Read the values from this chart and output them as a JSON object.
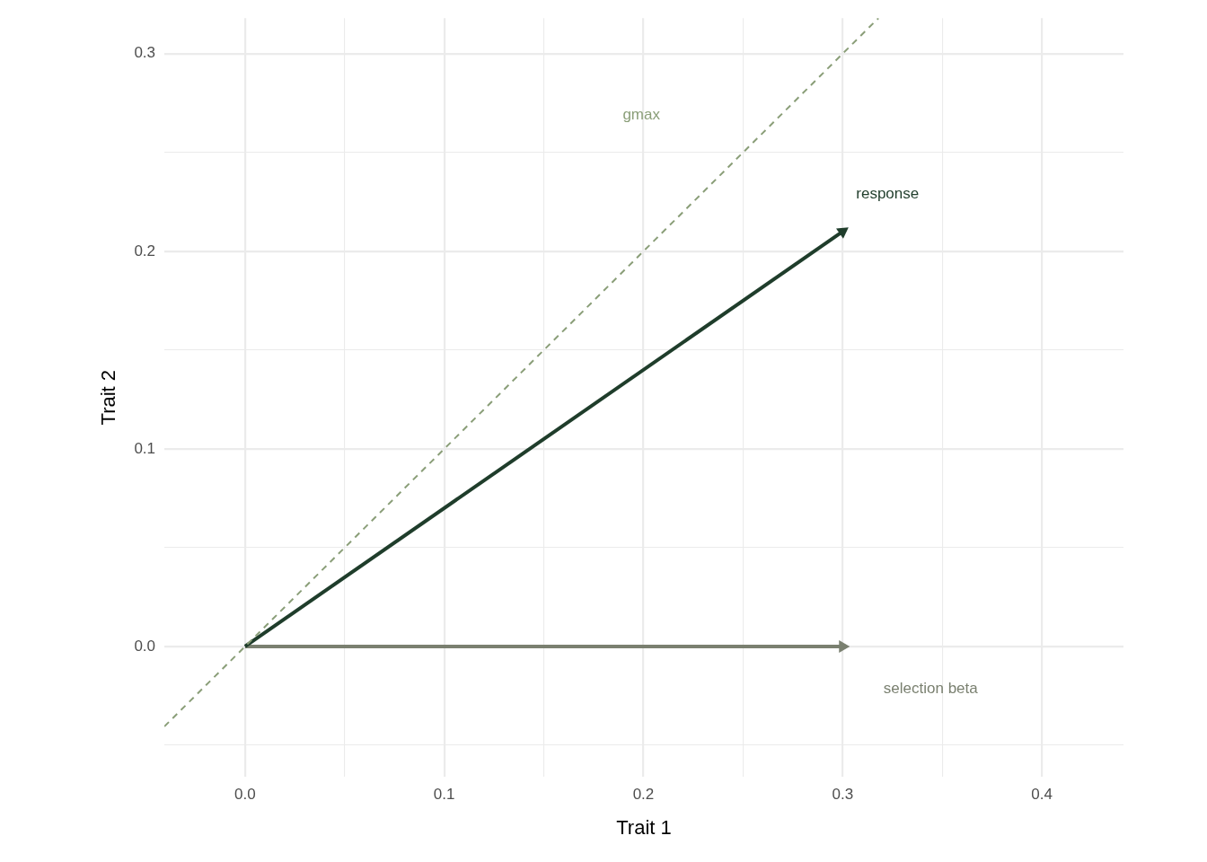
{
  "chart_data": {
    "type": "line",
    "xlabel": "Trait 1",
    "ylabel": "Trait 2",
    "xlim": [
      -0.0405,
      0.441
    ],
    "ylim": [
      -0.066,
      0.318
    ],
    "xticks": [
      {
        "value": 0,
        "label": "0.0"
      },
      {
        "value": 0.05,
        "label": null
      },
      {
        "value": 0.1,
        "label": "0.1"
      },
      {
        "value": 0.15,
        "label": null
      },
      {
        "value": 0.2,
        "label": "0.2"
      },
      {
        "value": 0.25,
        "label": null
      },
      {
        "value": 0.3,
        "label": "0.3"
      },
      {
        "value": 0.35,
        "label": null
      },
      {
        "value": 0.4,
        "label": "0.4"
      }
    ],
    "yticks": [
      {
        "value": -0.05,
        "label": null
      },
      {
        "value": 0,
        "label": "0.0"
      },
      {
        "value": 0.05,
        "label": null
      },
      {
        "value": 0.1,
        "label": "0.1"
      },
      {
        "value": 0.15,
        "label": null
      },
      {
        "value": 0.2,
        "label": "0.2"
      },
      {
        "value": 0.25,
        "label": null
      },
      {
        "value": 0.3,
        "label": "0.3"
      }
    ],
    "grid": true,
    "legend": false,
    "series": [
      {
        "name": "gmax",
        "color": "#8a9e78",
        "x": [
          -0.0405,
          0.318
        ],
        "values": [
          -0.0405,
          0.318
        ],
        "line_style": "dashed"
      },
      {
        "name": "response",
        "color": "#1f3d2b",
        "x": [
          0,
          0.3
        ],
        "values": [
          0,
          0.21
        ],
        "line_style": "solid"
      },
      {
        "name": "selection beta",
        "color": "#7a8070",
        "x": [
          0,
          0.3
        ],
        "values": [
          0,
          0
        ],
        "line_style": "solid"
      }
    ]
  }
}
